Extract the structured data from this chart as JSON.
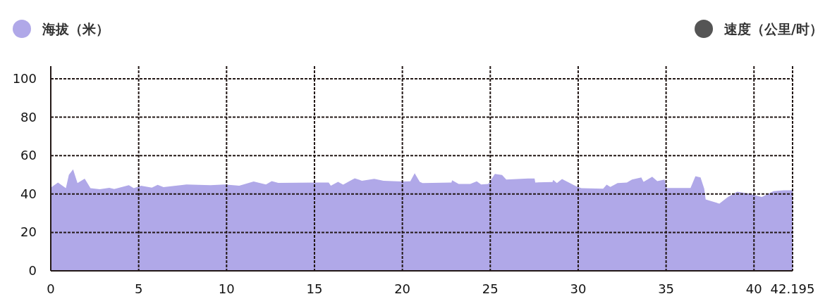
{
  "chart_data": {
    "type": "area",
    "series": [
      {
        "name": "海拔（米）",
        "color": "#b0a8e8",
        "x": [
          0,
          0.41,
          0.86,
          1.03,
          1.27,
          1.52,
          1.93,
          2.26,
          2.79,
          3.33,
          3.61,
          4.44,
          4.72,
          5.13,
          5.75,
          6.08,
          6.41,
          7.72,
          9.08,
          9.9,
          10.72,
          11.54,
          12.24,
          12.57,
          12.94,
          15.11,
          15.81,
          15.93,
          16.34,
          16.63,
          17.29,
          17.7,
          18.4,
          18.93,
          19.96,
          20.45,
          20.7,
          20.99,
          21.15,
          22.79,
          22.83,
          23.2,
          23.86,
          24.23,
          24.48,
          24.89,
          25.26,
          25.67,
          25.91,
          27.15,
          27.52,
          27.56,
          28.54,
          28.58,
          28.79,
          29.08,
          29.9,
          30.18,
          31.42,
          31.62,
          31.83,
          32.24,
          32.77,
          33.06,
          33.59,
          33.72,
          34.21,
          34.5,
          34.91,
          35.03,
          36.39,
          36.67,
          36.96,
          37.17,
          37.25,
          38.03,
          38.52,
          39.05,
          39.75,
          40.45,
          41.11,
          41.68,
          42.195
        ],
        "values": [
          43.3,
          46,
          43,
          50,
          52.8,
          45.7,
          48,
          43,
          42.5,
          43.2,
          42.6,
          44.6,
          43,
          44.3,
          43.3,
          44.8,
          43.6,
          45,
          44.6,
          45,
          44.3,
          46.5,
          45,
          46.7,
          45.8,
          46,
          46,
          44.3,
          46.3,
          44.9,
          48.2,
          46.9,
          47.9,
          46.9,
          46.5,
          46.6,
          50.8,
          46.3,
          45.7,
          46,
          47.2,
          45.2,
          45.2,
          46.6,
          45,
          45.2,
          50.5,
          49.9,
          47.5,
          48.1,
          48.1,
          46,
          46.2,
          47.3,
          45.7,
          47.8,
          44,
          43,
          42.8,
          44.9,
          43.7,
          45.7,
          46,
          47.5,
          48.6,
          46.3,
          49,
          46.7,
          47.5,
          43.1,
          43.1,
          49.3,
          48.6,
          42.8,
          37.2,
          35,
          38.5,
          41.2,
          40.1,
          38.5,
          41.5,
          41.9,
          41.9
        ]
      },
      {
        "name": "速度（公里/时）",
        "color": "#555555"
      }
    ],
    "xlim": [
      0,
      42.195
    ],
    "xticks": [
      0,
      5,
      10,
      15,
      20,
      25,
      30,
      35,
      40,
      42.195
    ],
    "ylim": [
      0,
      100
    ],
    "yticks": [
      0,
      20,
      40,
      60,
      80,
      100
    ],
    "grid": true,
    "legend": "top"
  }
}
